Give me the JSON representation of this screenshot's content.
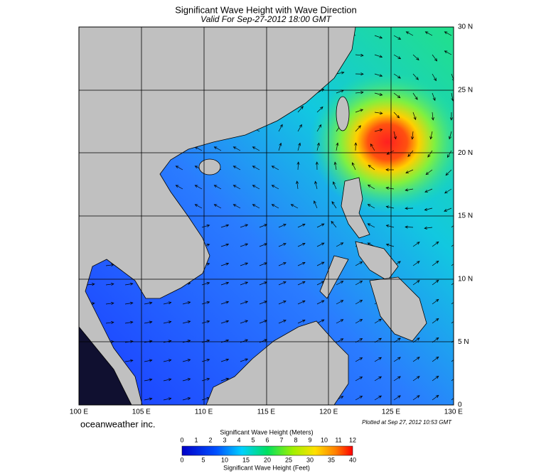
{
  "header": {
    "title": "Significant Wave Height with Wave Direction",
    "subtitle": "Valid For Sep-27-2012 18:00 GMT"
  },
  "map": {
    "lat_labels": [
      "30 N",
      "25 N",
      "20 N",
      "15 N",
      "10 N",
      "5 N",
      "0"
    ],
    "lon_labels": [
      "100 E",
      "105 E",
      "110 E",
      "115 E",
      "120 E",
      "125 E",
      "130 E"
    ],
    "brand": "oceanweather inc.",
    "plotted": "Plotted at Sep 27, 2012 10:53 GMT"
  },
  "colorbar": {
    "meters_title": "Significant Wave Height (Meters)",
    "meters_ticks": [
      0,
      1,
      2,
      3,
      4,
      5,
      6,
      7,
      8,
      9,
      10,
      11,
      12
    ],
    "feet_ticks": [
      0,
      5,
      10,
      15,
      20,
      25,
      30,
      35,
      40
    ],
    "feet_title": "Significant Wave Height (Feet)"
  }
}
